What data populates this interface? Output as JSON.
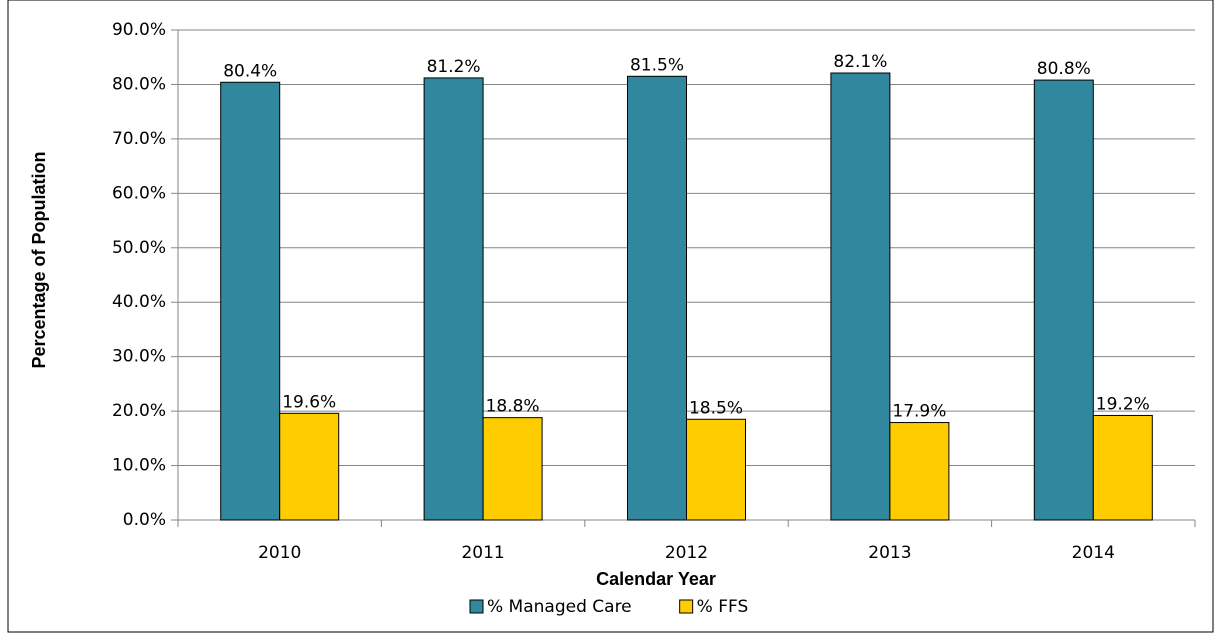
{
  "chart_data": {
    "type": "bar",
    "categories": [
      "2010",
      "2011",
      "2012",
      "2013",
      "2014"
    ],
    "series": [
      {
        "name": "% Managed Care",
        "color": "#31879d",
        "values": [
          80.4,
          81.2,
          81.5,
          82.1,
          80.8
        ],
        "value_labels": [
          "80.4%",
          "81.2%",
          "81.5%",
          "82.1%",
          "80.8%"
        ]
      },
      {
        "name": "% FFS",
        "color": "#ffcc00",
        "values": [
          19.6,
          18.8,
          18.5,
          17.9,
          19.2
        ],
        "value_labels": [
          "19.6%",
          "18.8%",
          "18.5%",
          "17.9%",
          "19.2%"
        ]
      }
    ],
    "xlabel": "Calendar Year",
    "ylabel": "Percentage of Population",
    "ylim": [
      0,
      90
    ],
    "yticks": [
      {
        "value": 0,
        "label": "0.0%"
      },
      {
        "value": 10,
        "label": "10.0%"
      },
      {
        "value": 20,
        "label": "20.0%"
      },
      {
        "value": 30,
        "label": "30.0%"
      },
      {
        "value": 40,
        "label": "40.0%"
      },
      {
        "value": 50,
        "label": "50.0%"
      },
      {
        "value": 60,
        "label": "60.0%"
      },
      {
        "value": 70,
        "label": "70.0%"
      },
      {
        "value": 80,
        "label": "80.0%"
      },
      {
        "value": 90,
        "label": "90.0%"
      }
    ],
    "grid": true,
    "legend": "bottom"
  }
}
